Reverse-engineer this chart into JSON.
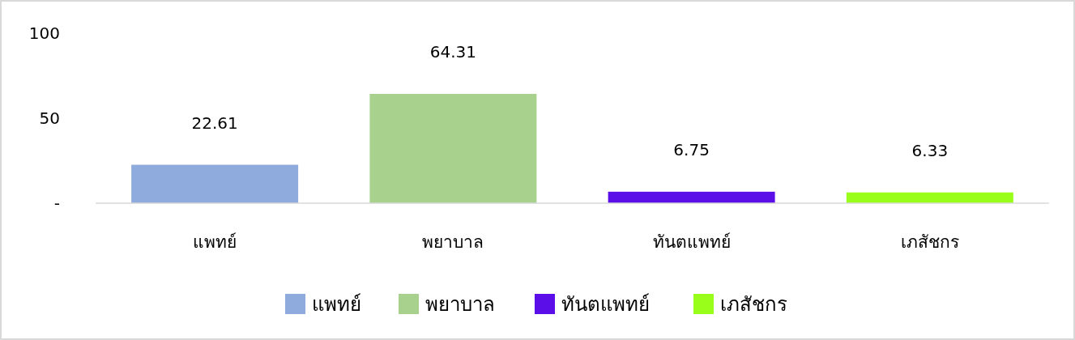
{
  "chart_data": {
    "type": "bar",
    "categories": [
      "แพทย์",
      "พยาบาล",
      "ทันตแพทย์",
      "เภสัชกร"
    ],
    "stacked": true,
    "series": [
      {
        "name": "แพทย์",
        "color": "#8faadc",
        "values": [
          22.61,
          null,
          null,
          null
        ]
      },
      {
        "name": "พยาบาล",
        "color": "#a9d18e",
        "values": [
          null,
          64.31,
          null,
          null
        ]
      },
      {
        "name": "ทันตแพทย์",
        "color": "#5b0ee8",
        "values": [
          null,
          null,
          6.75,
          null
        ]
      },
      {
        "name": "เภสัชกร",
        "color": "#99ff1a",
        "values": [
          null,
          null,
          null,
          6.33
        ]
      }
    ],
    "ylim": [
      0,
      100
    ],
    "yticks": [
      {
        "value": 0,
        "label": "-"
      },
      50,
      100
    ],
    "data_labels": true,
    "grid": false,
    "legend": "bottom"
  }
}
